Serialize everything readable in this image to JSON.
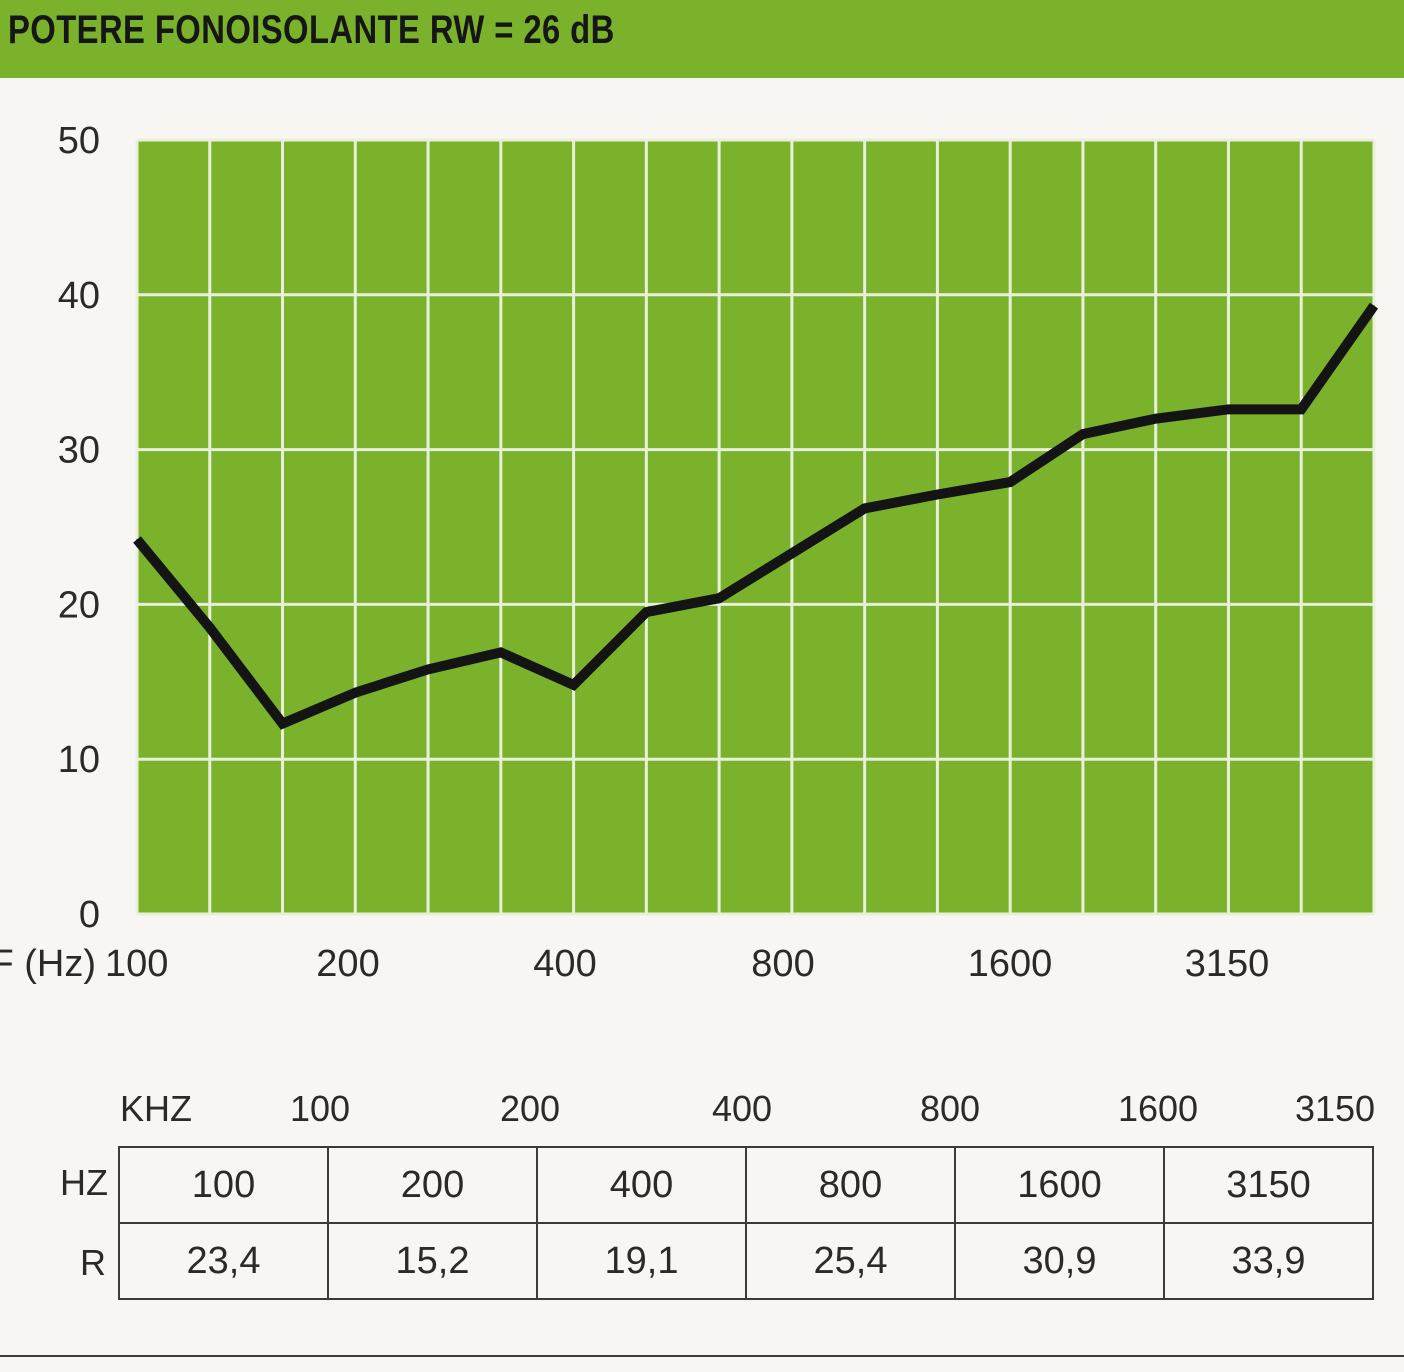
{
  "header": {
    "title": "POTERE FONOISOLANTE RW = 26 dB"
  },
  "chart_data": {
    "type": "line",
    "xlabel": "F (Hz)",
    "ylabel": "",
    "ylim": [
      0,
      50
    ],
    "yticks": [
      0,
      10,
      20,
      30,
      40,
      50
    ],
    "x_tick_labels": [
      "100",
      "200",
      "400",
      "800",
      "1600",
      "3150"
    ],
    "x": [
      "100",
      "125",
      "160",
      "200",
      "250",
      "315",
      "400",
      "500",
      "630",
      "800",
      "1000",
      "1250",
      "1600",
      "2000",
      "2500",
      "3150",
      "4000",
      "5000"
    ],
    "series": [
      {
        "values": [
          24.2,
          18.5,
          12.3,
          14.3,
          15.8,
          16.9,
          14.8,
          19.5,
          20.4,
          23.3,
          26.2,
          27.1,
          27.9,
          31.0,
          32.0,
          32.6,
          32.6,
          39.3
        ]
      }
    ],
    "grid": true,
    "legend": "none",
    "plot_background": "#7ab32b",
    "grid_color": "#e8f0dc",
    "line_color": "#141414"
  },
  "table": {
    "khz_label": "KHZ",
    "khz_values": [
      "100",
      "200",
      "400",
      "800",
      "1600",
      "3150"
    ],
    "hz_label": "HZ",
    "r_label": "R",
    "hz_values": [
      "100",
      "200",
      "400",
      "800",
      "1600",
      "3150"
    ],
    "r_values": [
      "23,4",
      "15,2",
      "19,1",
      "25,4",
      "30,9",
      "33,9"
    ]
  }
}
